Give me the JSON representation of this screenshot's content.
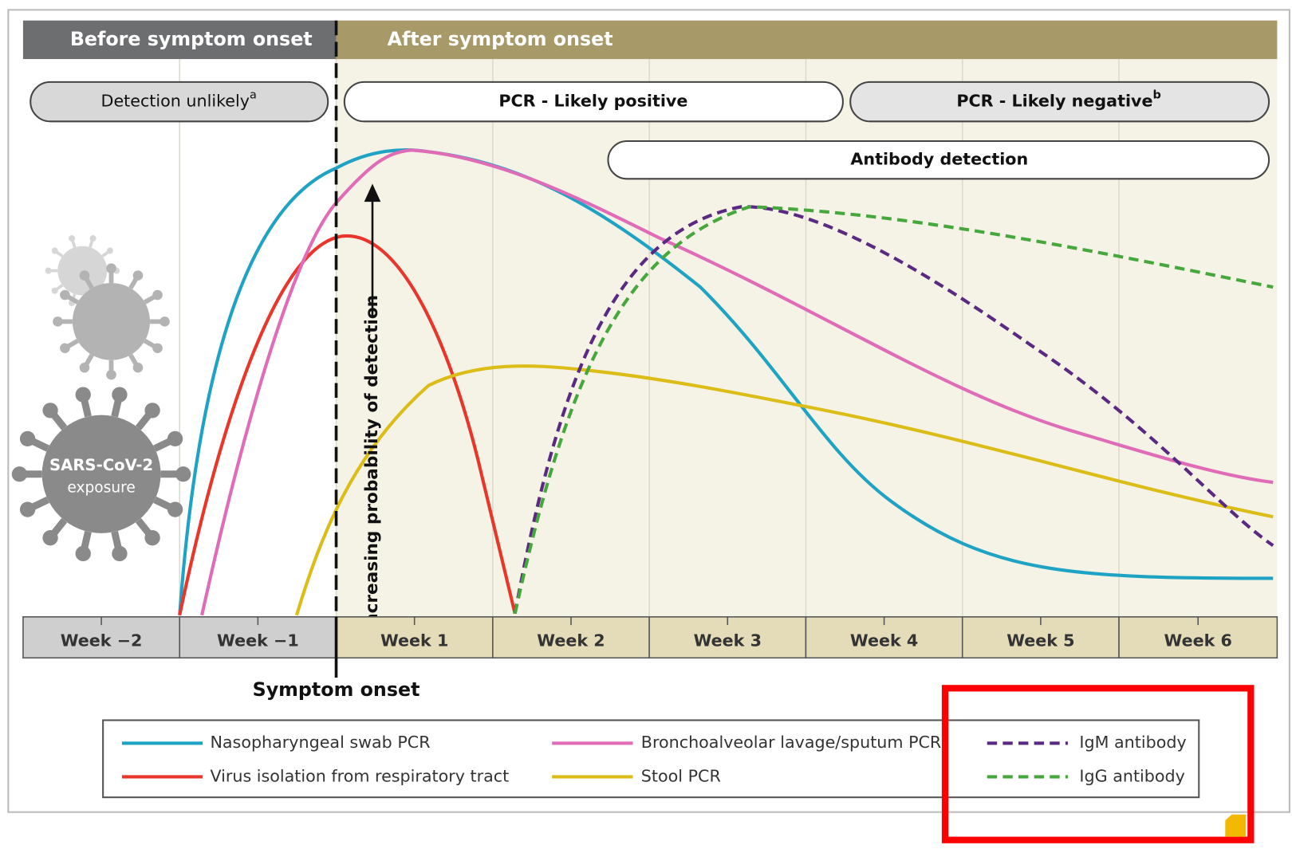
{
  "header": {
    "before": "Before symptom onset",
    "after": "After symptom onset"
  },
  "phases": {
    "detection_unlikely": "Detection unlikely",
    "detection_unlikely_note": "a",
    "pcr_positive": "PCR - Likely positive",
    "pcr_negative": "PCR - Likely negative",
    "pcr_negative_note": "b",
    "antibody": "Antibody detection"
  },
  "y_axis_label": "Increasing probability of detection",
  "exposure": {
    "line1": "SARS-CoV-2",
    "line2": "exposure"
  },
  "weeks": [
    "Week −2",
    "Week −1",
    "Week 1",
    "Week 2",
    "Week 3",
    "Week 4",
    "Week 5",
    "Week 6"
  ],
  "symptom_onset": "Symptom onset",
  "legend": [
    {
      "label": "Nasopharyngeal swab PCR",
      "color": "#1ea3c4",
      "dashed": false
    },
    {
      "label": "Virus isolation from respiratory tract",
      "color": "#e8372a",
      "dashed": false
    },
    {
      "label": "Bronchoalveolar lavage/sputum PCR",
      "color": "#e06bb6",
      "dashed": false
    },
    {
      "label": "Stool PCR",
      "color": "#dcbc17",
      "dashed": false
    },
    {
      "label": "IgM antibody",
      "color": "#5a2a82",
      "dashed": true
    },
    {
      "label": "IgG antibody",
      "color": "#46a83c",
      "dashed": true
    }
  ]
}
